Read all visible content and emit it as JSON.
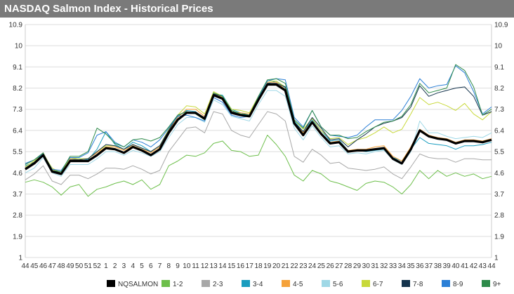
{
  "title": "NASDAQ Salmon Index - Historical Prices",
  "chart_data": {
    "type": "line",
    "title": "NASDAQ Salmon Index - Historical Prices",
    "xlabel": "",
    "ylabel": "",
    "ylim": [
      1,
      10.9
    ],
    "yticks": [
      "1",
      "1.9",
      "2.8",
      "3.7",
      "4.6",
      "5.5",
      "6.4",
      "7.3",
      "8.2",
      "9.1",
      "10",
      "10.9"
    ],
    "x": [
      "44",
      "45",
      "46",
      "47",
      "48",
      "49",
      "50",
      "51",
      "52",
      "1",
      "2",
      "3",
      "4",
      "5",
      "6",
      "7",
      "8",
      "9",
      "10",
      "11",
      "12",
      "13",
      "14",
      "15",
      "16",
      "17",
      "18",
      "19",
      "20",
      "21",
      "22",
      "23",
      "24",
      "25",
      "26",
      "27",
      "28",
      "29",
      "30",
      "31",
      "32",
      "33",
      "34",
      "35",
      "36",
      "37",
      "38",
      "39",
      "40",
      "41",
      "42",
      "43",
      "44"
    ],
    "grid": true,
    "legend_position": "bottom",
    "series": [
      {
        "name": "NQSALMON",
        "color": "#000000",
        "width": 3.2,
        "values": [
          4.75,
          5.0,
          5.35,
          4.65,
          4.55,
          5.1,
          5.1,
          5.1,
          5.35,
          5.65,
          5.6,
          5.45,
          5.7,
          5.55,
          5.35,
          5.6,
          6.3,
          6.85,
          7.15,
          7.15,
          6.9,
          7.9,
          7.75,
          7.15,
          7.05,
          7.0,
          7.7,
          8.35,
          8.35,
          8.1,
          6.7,
          6.2,
          6.75,
          6.25,
          5.85,
          5.9,
          5.5,
          5.55,
          5.55,
          5.6,
          5.65,
          5.2,
          5.0,
          5.6,
          6.4,
          6.15,
          6.05,
          6.0,
          5.85,
          5.95,
          5.95,
          5.9,
          6.0
        ]
      },
      {
        "name": "1-2",
        "color": "#6dbf4b",
        "width": 1,
        "values": [
          4.2,
          4.3,
          4.2,
          4.0,
          3.65,
          4.0,
          4.1,
          3.6,
          3.9,
          4.0,
          4.15,
          4.25,
          4.1,
          4.3,
          3.9,
          4.1,
          4.9,
          5.1,
          5.35,
          5.3,
          5.45,
          5.85,
          5.95,
          5.55,
          5.5,
          5.3,
          5.35,
          6.2,
          5.8,
          5.3,
          4.5,
          4.25,
          4.7,
          4.55,
          4.25,
          4.15,
          4.0,
          3.85,
          4.15,
          4.25,
          4.2,
          4.0,
          3.7,
          4.1,
          4.7,
          4.35,
          4.7,
          4.45,
          4.6,
          4.45,
          4.55,
          4.35,
          4.45
        ]
      },
      {
        "name": "2-3",
        "color": "#a8a8a8",
        "width": 1,
        "values": [
          4.3,
          4.55,
          4.9,
          4.25,
          4.1,
          4.5,
          4.5,
          4.35,
          4.55,
          4.8,
          4.8,
          4.75,
          4.9,
          4.75,
          4.55,
          4.7,
          5.5,
          6.0,
          6.5,
          6.55,
          6.3,
          7.2,
          7.1,
          6.4,
          6.2,
          6.1,
          6.65,
          7.2,
          7.1,
          6.8,
          5.3,
          5.05,
          5.6,
          5.35,
          5.0,
          5.05,
          4.8,
          4.75,
          4.7,
          4.75,
          4.85,
          4.55,
          4.35,
          4.85,
          5.4,
          5.25,
          5.2,
          5.2,
          5.05,
          5.2,
          5.2,
          5.15,
          5.15
        ]
      },
      {
        "name": "3-4",
        "color": "#1a9dbf",
        "width": 1,
        "values": [
          4.9,
          5.05,
          5.45,
          4.7,
          4.6,
          5.2,
          5.2,
          5.15,
          5.6,
          6.35,
          5.8,
          5.6,
          5.9,
          5.75,
          5.5,
          5.75,
          6.45,
          7.0,
          7.25,
          7.2,
          6.9,
          7.95,
          7.9,
          7.3,
          7.15,
          7.05,
          7.75,
          8.4,
          8.5,
          8.2,
          6.8,
          6.35,
          6.85,
          6.4,
          5.95,
          6.0,
          5.55,
          5.55,
          5.5,
          5.55,
          5.6,
          5.25,
          5.1,
          5.6,
          6.1,
          5.85,
          5.8,
          5.75,
          5.6,
          5.75,
          5.75,
          5.8,
          5.9
        ]
      },
      {
        "name": "4-5",
        "color": "#f5a23a",
        "width": 1,
        "values": [
          4.85,
          5.1,
          5.45,
          4.75,
          4.6,
          5.2,
          5.15,
          5.2,
          5.45,
          5.7,
          5.7,
          5.55,
          5.75,
          5.6,
          5.45,
          5.7,
          6.4,
          6.95,
          7.3,
          7.3,
          7.0,
          8.0,
          7.8,
          7.2,
          7.15,
          7.1,
          7.75,
          8.45,
          8.45,
          8.15,
          6.75,
          6.3,
          6.8,
          6.3,
          5.9,
          5.95,
          5.55,
          5.6,
          5.6,
          5.7,
          5.75,
          5.3,
          5.1,
          5.7,
          6.45,
          6.2,
          6.1,
          6.05,
          5.9,
          6.0,
          6.0,
          5.95,
          6.05
        ]
      },
      {
        "name": "5-6",
        "color": "#9fd8e6",
        "width": 1,
        "values": [
          4.6,
          4.8,
          5.25,
          4.6,
          4.45,
          4.95,
          4.95,
          4.95,
          5.2,
          5.5,
          5.5,
          5.35,
          5.55,
          5.45,
          5.3,
          5.5,
          6.1,
          6.65,
          6.95,
          6.95,
          6.75,
          7.7,
          7.5,
          7.0,
          6.9,
          6.8,
          7.5,
          8.1,
          8.1,
          7.85,
          6.5,
          6.0,
          6.6,
          6.1,
          5.7,
          5.75,
          5.4,
          5.45,
          5.4,
          5.5,
          5.55,
          5.15,
          4.95,
          5.5,
          6.8,
          6.3,
          6.3,
          6.15,
          6.05,
          6.1,
          6.15,
          6.1,
          6.3
        ]
      },
      {
        "name": "6-7",
        "color": "#c8d93a",
        "width": 1,
        "values": [
          4.85,
          5.1,
          5.4,
          4.8,
          4.6,
          5.25,
          5.2,
          5.2,
          5.5,
          5.75,
          5.75,
          5.6,
          5.8,
          5.65,
          5.5,
          5.75,
          6.45,
          7.05,
          7.45,
          7.4,
          7.1,
          8.05,
          7.85,
          7.3,
          7.25,
          7.15,
          7.85,
          8.5,
          8.5,
          8.25,
          6.85,
          6.45,
          6.9,
          6.4,
          6.05,
          6.1,
          5.8,
          6.0,
          6.1,
          6.3,
          6.55,
          6.3,
          6.45,
          7.1,
          7.8,
          7.5,
          7.6,
          7.45,
          7.25,
          7.55,
          7.1,
          6.85,
          7.2
        ]
      },
      {
        "name": "7-8",
        "color": "#15344d",
        "width": 1,
        "values": [
          4.8,
          5.05,
          5.4,
          4.7,
          4.6,
          5.15,
          5.15,
          5.2,
          5.5,
          5.8,
          5.75,
          5.6,
          5.8,
          5.65,
          5.5,
          5.75,
          6.4,
          7.05,
          7.2,
          7.15,
          6.95,
          7.95,
          7.85,
          7.2,
          7.1,
          7.05,
          7.75,
          8.4,
          8.4,
          8.25,
          6.75,
          6.35,
          6.95,
          6.5,
          6.0,
          6.05,
          5.7,
          6.0,
          6.25,
          6.55,
          6.7,
          6.8,
          6.95,
          7.4,
          8.3,
          7.85,
          8.0,
          8.1,
          8.2,
          8.25,
          7.85,
          7.05,
          7.2
        ]
      },
      {
        "name": "8-9",
        "color": "#2b7fd6",
        "width": 1,
        "values": [
          5.0,
          5.15,
          5.4,
          4.75,
          4.7,
          5.25,
          5.25,
          5.45,
          6.2,
          6.35,
          5.9,
          5.7,
          6.0,
          5.9,
          5.7,
          6.0,
          6.5,
          7.0,
          7.05,
          6.95,
          6.8,
          7.8,
          7.6,
          7.05,
          6.95,
          7.0,
          7.8,
          8.5,
          8.6,
          8.55,
          6.95,
          6.55,
          7.25,
          6.55,
          6.2,
          6.15,
          6.1,
          6.2,
          6.55,
          6.85,
          6.85,
          6.85,
          7.25,
          7.85,
          8.6,
          8.2,
          8.3,
          8.35,
          9.15,
          8.85,
          8.05,
          7.1,
          7.4
        ]
      },
      {
        "name": "9+",
        "color": "#2e8b4a",
        "width": 1,
        "values": [
          4.95,
          5.15,
          5.45,
          4.7,
          4.65,
          5.3,
          5.3,
          5.5,
          6.5,
          6.25,
          5.85,
          5.7,
          6.0,
          6.05,
          5.95,
          6.1,
          6.55,
          7.05,
          7.2,
          7.1,
          6.85,
          8.0,
          7.85,
          7.25,
          7.1,
          7.05,
          7.85,
          8.55,
          8.6,
          8.4,
          6.85,
          6.5,
          7.25,
          6.55,
          6.2,
          6.2,
          6.05,
          6.1,
          6.35,
          6.55,
          6.75,
          6.8,
          7.0,
          7.5,
          8.4,
          8.0,
          8.1,
          8.2,
          9.2,
          8.95,
          8.25,
          7.05,
          7.3
        ]
      }
    ]
  }
}
